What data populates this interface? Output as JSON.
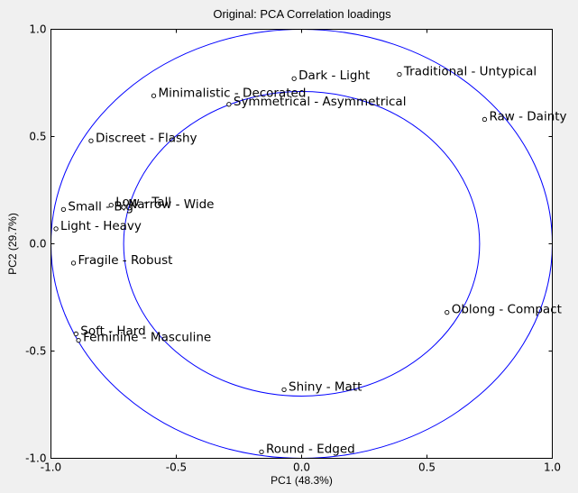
{
  "chart_data": {
    "type": "scatter",
    "title": "Original: PCA Correlation loadings",
    "xlabel": "PC1 (48.3%)",
    "ylabel": "PC2 (29.7%)",
    "xlim": [
      -1.0,
      1.0
    ],
    "ylim": [
      -1.0,
      1.0
    ],
    "xticks": [
      "-1.0",
      "-0.5",
      "0.0",
      "0.5",
      "1.0"
    ],
    "yticks": [
      "1.0",
      "0.5",
      "0.0",
      "-0.5",
      "-1.0"
    ],
    "grid": false,
    "circles": [
      {
        "radius": 1.0,
        "color": "#0000ff"
      },
      {
        "radius": 0.71,
        "color": "#0000ff"
      }
    ],
    "points": [
      {
        "label": "Dark - Light",
        "x": -0.03,
        "y": 0.77
      },
      {
        "label": "Traditional - Untypical",
        "x": 0.39,
        "y": 0.79
      },
      {
        "label": "Minimalistic - Decorated",
        "x": -0.59,
        "y": 0.69
      },
      {
        "label": "Symmetrical - Asymmetrical",
        "x": -0.29,
        "y": 0.65
      },
      {
        "label": "Raw - Dainty",
        "x": 0.73,
        "y": 0.58
      },
      {
        "label": "Discreet - Flashy",
        "x": -0.84,
        "y": 0.48
      },
      {
        "label": "Small - Big",
        "x": -0.95,
        "y": 0.16
      },
      {
        "label": "Low - Tall",
        "x": -0.76,
        "y": 0.18
      },
      {
        "label": "Narrow - Wide",
        "x": -0.71,
        "y": 0.17
      },
      {
        "label": "Light - Heavy",
        "x": -0.98,
        "y": 0.07
      },
      {
        "label": "Fragile - Robust",
        "x": -0.91,
        "y": -0.09
      },
      {
        "label": "Oblong - Compact",
        "x": 0.58,
        "y": -0.32
      },
      {
        "label": "Soft - Hard",
        "x": -0.9,
        "y": -0.42
      },
      {
        "label": "Feminine - Masculine",
        "x": -0.89,
        "y": -0.45
      },
      {
        "label": "Shiny - Matt",
        "x": -0.07,
        "y": -0.68
      },
      {
        "label": "Round - Edged",
        "x": -0.16,
        "y": -0.97
      }
    ],
    "colors": {
      "circle": "#0000ff",
      "marker": "#000000",
      "background": "#f0f0f0",
      "plot_background": "#ffffff"
    }
  }
}
